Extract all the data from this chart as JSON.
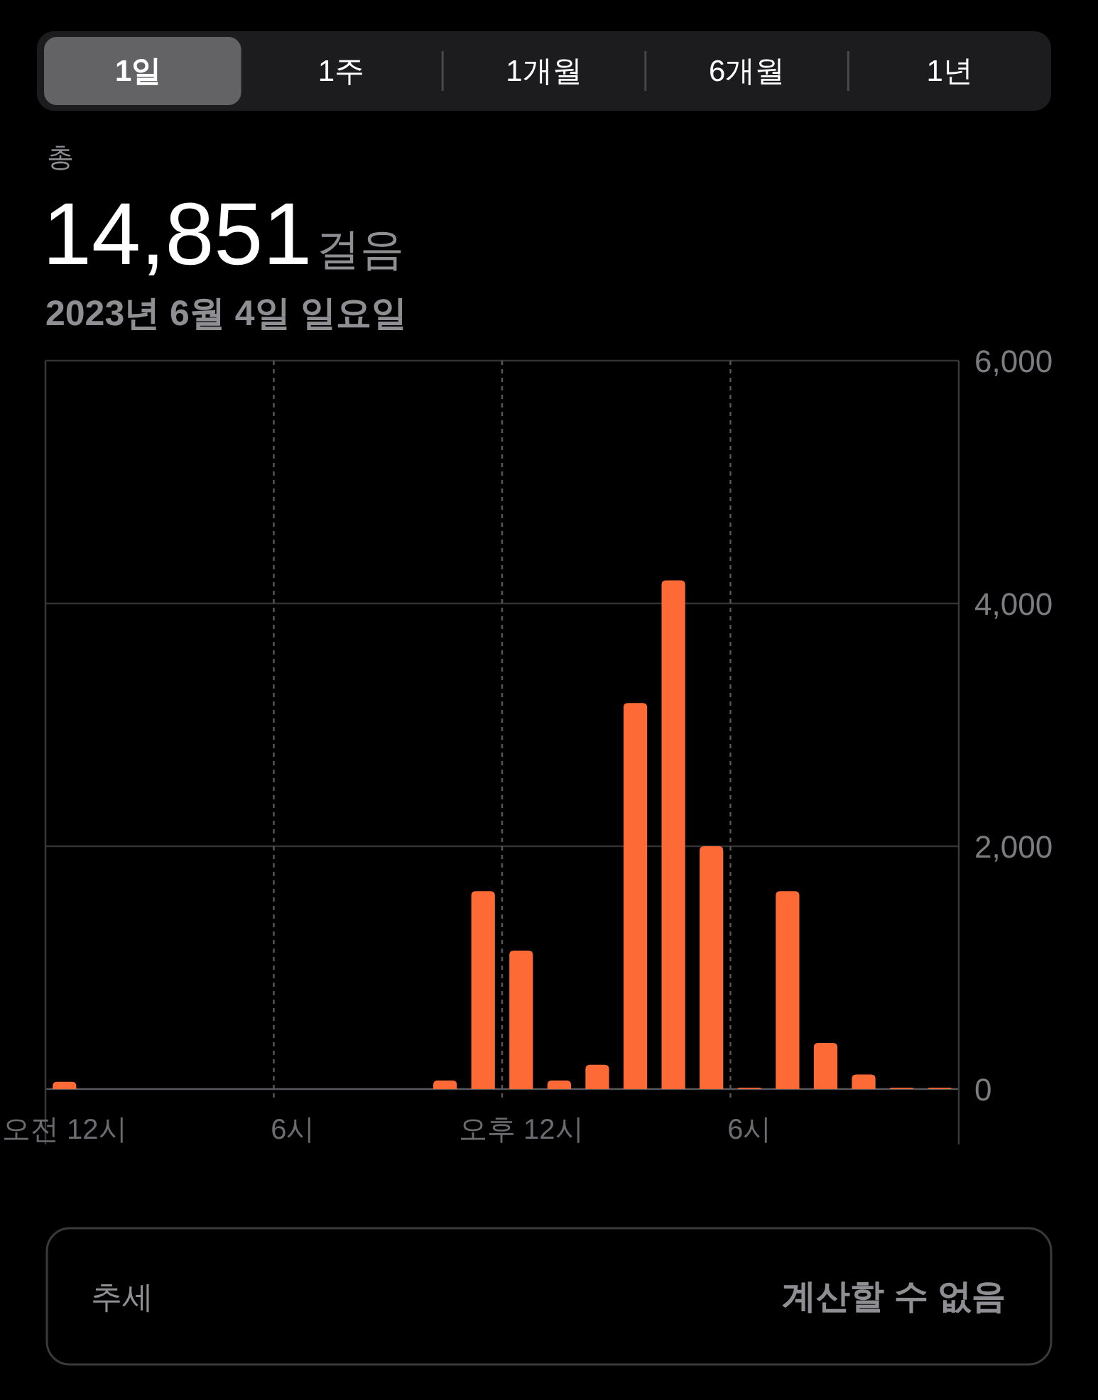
{
  "chart_data": {
    "type": "bar",
    "title": "14,851걸음",
    "subtitle": "2023년 6월 4일 일요일",
    "annotations": [
      "1일",
      "1주",
      "1개월",
      "6개월",
      "1년",
      "총",
      "추세",
      "계산할 수 없음"
    ],
    "categories": [
      "오전 12시",
      null,
      null,
      null,
      null,
      null,
      "6시",
      null,
      null,
      null,
      null,
      null,
      "오후 12시",
      null,
      null,
      null,
      null,
      null,
      "6시",
      null,
      null,
      null,
      null,
      null
    ],
    "values": [
      60,
      null,
      null,
      null,
      null,
      null,
      null,
      null,
      null,
      null,
      70,
      1630,
      1140,
      70,
      200,
      3180,
      4190,
      2000,
      10,
      1630,
      380,
      120,
      10,
      10
    ],
    "color": "#fe6a35",
    "ylim": [
      0,
      6000
    ],
    "yticks": [
      0,
      {
        "value": 2000,
        "label": "2,000"
      },
      {
        "value": 4000,
        "label": "4,000"
      },
      {
        "value": 6000,
        "label": "6,000"
      }
    ],
    "grid": true
  }
}
